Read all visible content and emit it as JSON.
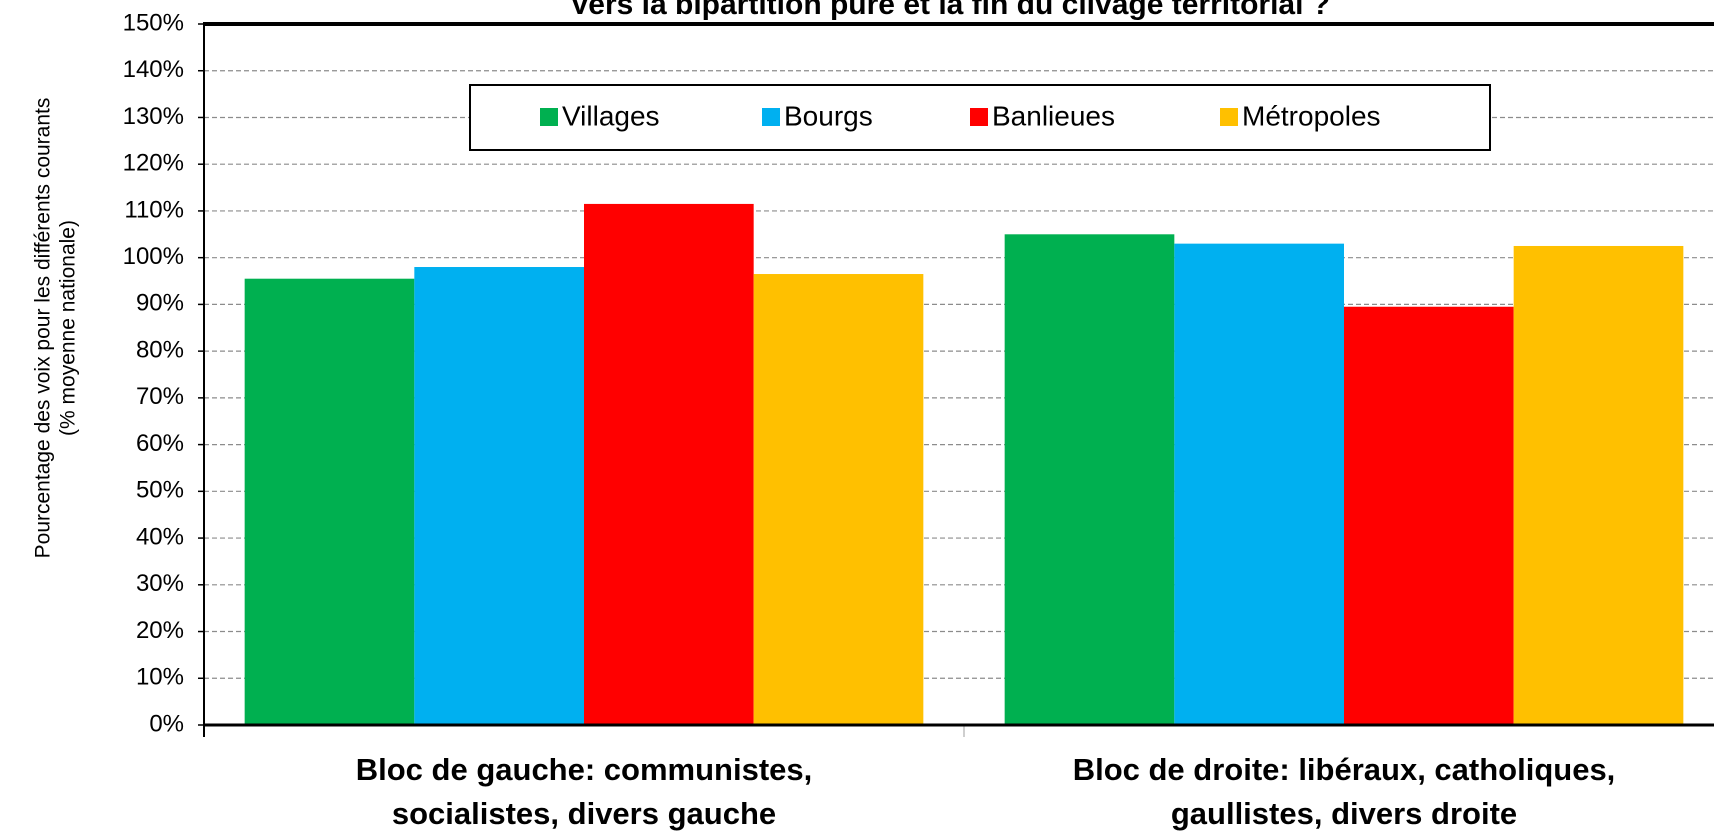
{
  "chart_data": {
    "type": "bar",
    "title": "Vers la bipartition pure et la fin du clivage territorial ?",
    "y_label": [
      "Pourcentage des voix pour les différents courants",
      "(% moyenne nationale)"
    ],
    "categories": [
      [
        "Bloc de gauche: communistes,",
        "socialistes, divers gauche"
      ],
      [
        "Bloc de droite: libéraux, catholiques,",
        "gaullistes, divers droite"
      ]
    ],
    "series": [
      {
        "name": "Villages",
        "color": "#00b050",
        "values": [
          95.5,
          105
        ]
      },
      {
        "name": "Bourgs",
        "color": "#00b0f0",
        "values": [
          98,
          103
        ]
      },
      {
        "name": "Banlieues",
        "color": "#ff0000",
        "values": [
          111.5,
          89.5
        ]
      },
      {
        "name": "Métropoles",
        "color": "#ffc000",
        "values": [
          96.5,
          102.5
        ]
      }
    ],
    "ylim": [
      0,
      150
    ],
    "yticks": [
      {
        "value": 0,
        "label": "0%"
      },
      {
        "value": 10,
        "label": "10%"
      },
      {
        "value": 20,
        "label": "20%"
      },
      {
        "value": 30,
        "label": "30%"
      },
      {
        "value": 40,
        "label": "40%"
      },
      {
        "value": 50,
        "label": "50%"
      },
      {
        "value": 60,
        "label": "60%"
      },
      {
        "value": 70,
        "label": "70%"
      },
      {
        "value": 80,
        "label": "80%"
      },
      {
        "value": 90,
        "label": "90%"
      },
      {
        "value": 100,
        "label": "100%"
      },
      {
        "value": 110,
        "label": "110%"
      },
      {
        "value": 120,
        "label": "120%"
      },
      {
        "value": 130,
        "label": "130%"
      },
      {
        "value": 140,
        "label": "140%"
      },
      {
        "value": 150,
        "label": "150%"
      }
    ],
    "grid": true
  }
}
